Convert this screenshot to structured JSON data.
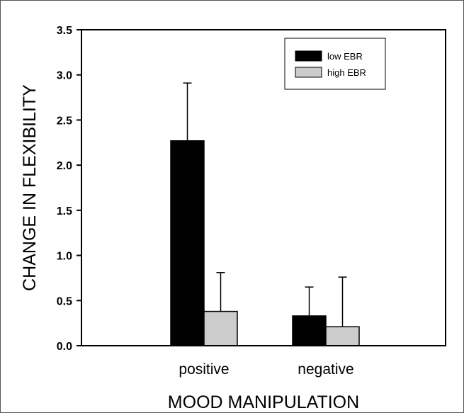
{
  "chart_data": {
    "type": "bar",
    "title": "",
    "xlabel": "MOOD MANIPULATION",
    "ylabel": "CHANGE IN FLEXIBILITY",
    "categories": [
      "positive",
      "negative"
    ],
    "series": [
      {
        "name": "low EBR",
        "color": "#000000",
        "values": [
          2.27,
          0.33
        ],
        "error": [
          0.64,
          0.32
        ]
      },
      {
        "name": "high EBR",
        "color": "#cccccc",
        "values": [
          0.38,
          0.21
        ],
        "error": [
          0.43,
          0.55
        ]
      }
    ],
    "ylim": [
      0,
      3.5
    ],
    "yticks": [
      "0.0",
      "0.5",
      "1.0",
      "1.5",
      "2.0",
      "2.5",
      "3.0",
      "3.5"
    ],
    "grid": false,
    "legend_position": "top-right"
  }
}
